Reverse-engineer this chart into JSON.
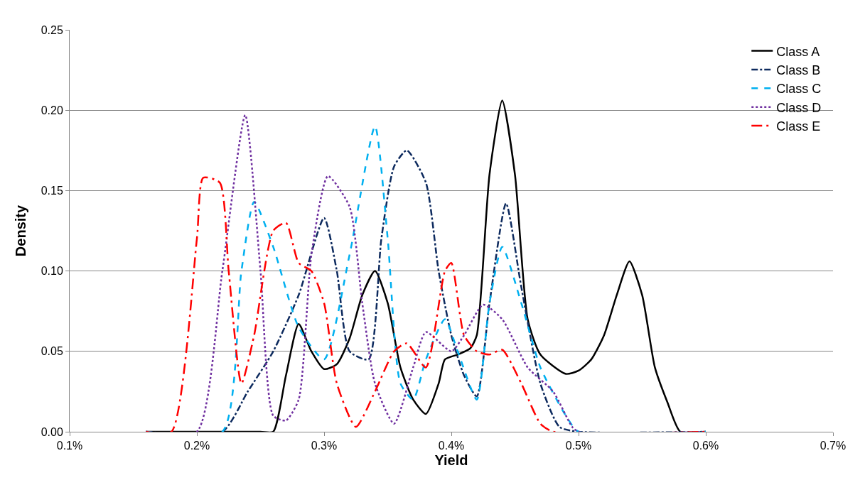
{
  "chart_data": {
    "type": "line",
    "xlabel": "Yield",
    "ylabel": "Density",
    "xlim": [
      0.1,
      0.7
    ],
    "xticks": [
      {
        "value": 0.1,
        "label": "0.1%"
      },
      {
        "value": 0.2,
        "label": "0.2%"
      },
      {
        "value": 0.3,
        "label": "0.3%"
      },
      {
        "value": 0.4,
        "label": "0.4%"
      },
      {
        "value": 0.5,
        "label": "0.5%"
      },
      {
        "value": 0.6,
        "label": "0.6%"
      },
      {
        "value": 0.7,
        "label": "0.7%"
      }
    ],
    "ylim": [
      0,
      0.25
    ],
    "yticks": [
      {
        "value": 0,
        "label": "0.00"
      },
      {
        "value": 0.05,
        "label": "0.05"
      },
      {
        "value": 0.1,
        "label": "0.10"
      },
      {
        "value": 0.15,
        "label": "0.15"
      },
      {
        "value": 0.2,
        "label": "0.20"
      },
      {
        "value": 0.25,
        "label": "0.25"
      }
    ],
    "grid": "y",
    "legend": "top right",
    "marker": "none",
    "series": [
      {
        "name": "Class A",
        "color": "#000000",
        "line_style": "solid",
        "x": [
          0.16,
          0.25,
          0.26,
          0.27,
          0.28,
          0.29,
          0.3,
          0.31,
          0.32,
          0.33,
          0.34,
          0.35,
          0.36,
          0.37,
          0.38,
          0.39,
          0.395,
          0.405,
          0.415,
          0.42,
          0.43,
          0.44,
          0.45,
          0.46,
          0.47,
          0.49,
          0.5,
          0.51,
          0.52,
          0.53,
          0.54,
          0.55,
          0.56,
          0.57,
          0.58,
          0.6
        ],
        "values": [
          0,
          0,
          0,
          0.035,
          0.067,
          0.05,
          0.039,
          0.042,
          0.058,
          0.085,
          0.1,
          0.08,
          0.04,
          0.02,
          0.011,
          0.03,
          0.045,
          0.048,
          0.052,
          0.06,
          0.16,
          0.206,
          0.16,
          0.07,
          0.048,
          0.036,
          0.038,
          0.045,
          0.06,
          0.085,
          0.106,
          0.085,
          0.04,
          0.018,
          0,
          0
        ]
      },
      {
        "name": "Class B",
        "color": "#0d2a5e",
        "line_style": "dashdot",
        "x": [
          0.16,
          0.22,
          0.24,
          0.26,
          0.28,
          0.3,
          0.31,
          0.32,
          0.335,
          0.345,
          0.355,
          0.365,
          0.38,
          0.39,
          0.4,
          0.41,
          0.42,
          0.43,
          0.443,
          0.455,
          0.47,
          0.485,
          0.5,
          0.6
        ],
        "values": [
          0,
          0,
          0.025,
          0.05,
          0.085,
          0.133,
          0.1,
          0.05,
          0.045,
          0.12,
          0.165,
          0.175,
          0.155,
          0.1,
          0.06,
          0.035,
          0.022,
          0.08,
          0.142,
          0.09,
          0.03,
          0.003,
          0,
          0
        ]
      },
      {
        "name": "Class C",
        "color": "#00b0f0",
        "line_style": "dashed",
        "x": [
          0.16,
          0.22,
          0.235,
          0.245,
          0.26,
          0.28,
          0.3,
          0.32,
          0.34,
          0.35,
          0.36,
          0.37,
          0.38,
          0.395,
          0.405,
          0.42,
          0.43,
          0.44,
          0.455,
          0.47,
          0.49,
          0.5,
          0.6
        ],
        "values": [
          0,
          0,
          0.1,
          0.143,
          0.115,
          0.065,
          0.045,
          0.11,
          0.19,
          0.12,
          0.03,
          0.02,
          0.045,
          0.07,
          0.05,
          0.02,
          0.08,
          0.115,
          0.08,
          0.04,
          0.01,
          0,
          0
        ]
      },
      {
        "name": "Class D",
        "color": "#7030a0",
        "line_style": "dotted",
        "x": [
          0.16,
          0.2,
          0.22,
          0.238,
          0.25,
          0.26,
          0.27,
          0.28,
          0.29,
          0.303,
          0.32,
          0.33,
          0.34,
          0.355,
          0.37,
          0.38,
          0.4,
          0.41,
          0.425,
          0.44,
          0.46,
          0.48,
          0.495,
          0.5,
          0.6
        ],
        "values": [
          0,
          0,
          0.1,
          0.197,
          0.1,
          0.01,
          0.007,
          0.02,
          0.11,
          0.159,
          0.14,
          0.08,
          0.03,
          0.005,
          0.04,
          0.062,
          0.05,
          0.06,
          0.079,
          0.07,
          0.04,
          0.025,
          0.003,
          0,
          0
        ]
      },
      {
        "name": "Class E",
        "color": "#ff0000",
        "line_style": "longdashdot",
        "x": [
          0.16,
          0.18,
          0.2,
          0.205,
          0.218,
          0.225,
          0.235,
          0.245,
          0.26,
          0.27,
          0.28,
          0.29,
          0.3,
          0.31,
          0.325,
          0.34,
          0.355,
          0.365,
          0.38,
          0.395,
          0.4,
          0.41,
          0.42,
          0.43,
          0.44,
          0.455,
          0.47,
          0.48,
          0.6
        ],
        "values": [
          0,
          0,
          0.12,
          0.158,
          0.155,
          0.1,
          0.03,
          0.06,
          0.125,
          0.13,
          0.105,
          0.1,
          0.08,
          0.03,
          0.003,
          0.025,
          0.05,
          0.055,
          0.04,
          0.1,
          0.105,
          0.06,
          0.05,
          0.048,
          0.051,
          0.03,
          0.005,
          0,
          0
        ]
      }
    ]
  }
}
